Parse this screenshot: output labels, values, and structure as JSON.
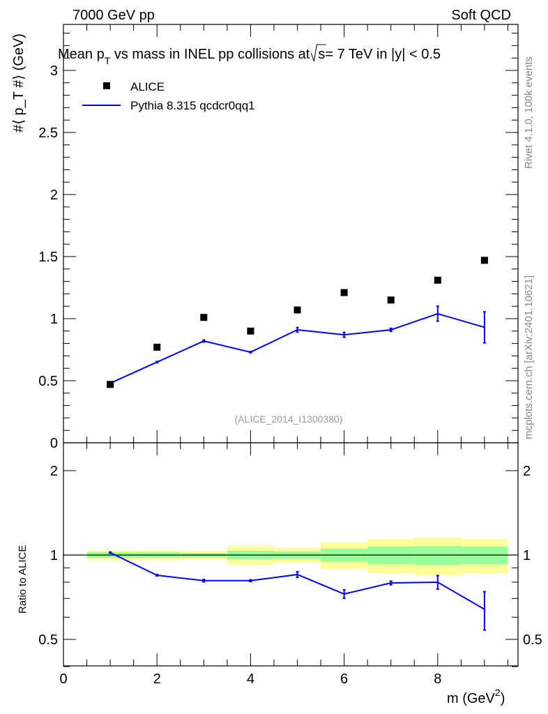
{
  "header": {
    "left": "7000 GeV pp",
    "right": "Soft QCD"
  },
  "side_labels": {
    "rivet": "Rivet 4.1.0,  100k events",
    "mcplots": "mcplots.cern.ch [arXiv:2401.10621]"
  },
  "watermark": "(ALICE_2014_I1300380)",
  "chart_data": [
    {
      "type": "scatter",
      "title": "Mean p_T vs mass in INEL pp collisions at √s = 7 TeV in |y| < 0.5",
      "title_parts": {
        "a": "Mean p",
        "sub": "T",
        "b": " vs mass in INEL pp collisions at",
        "sqrt": "s",
        "c": "=  7 TeV in |y| < 0.5"
      },
      "ylabel": "#⟨ p_T #⟩ (GeV)",
      "ylabel_parts": {
        "a": "#⟨ p",
        "sub": "T",
        "b": " #⟩ (GeV)"
      },
      "xlim": [
        0,
        9.7
      ],
      "ylim": [
        0,
        3.4
      ],
      "yticks": [
        "0",
        "0.5",
        "1",
        "1.5",
        "2",
        "2.5",
        "3"
      ],
      "legend": {
        "placement": "top-left",
        "entries": [
          "ALICE",
          "Pythia 8.315 qcdcr0qq1"
        ]
      },
      "x": [
        1,
        2,
        3,
        4,
        5,
        6,
        7,
        8,
        9
      ],
      "series": [
        {
          "name": "ALICE",
          "style": "markers",
          "color": "#000000",
          "values": [
            0.47,
            0.77,
            1.01,
            0.9,
            1.07,
            1.21,
            1.15,
            1.31,
            1.47
          ]
        },
        {
          "name": "Pythia 8.315 qcdcr0qq1",
          "style": "line",
          "color": "#0000ff",
          "values": [
            0.48,
            0.65,
            0.82,
            0.73,
            0.91,
            0.87,
            0.91,
            1.04,
            0.93
          ],
          "errors": [
            0.005,
            0.005,
            0.008,
            0.005,
            0.018,
            0.02,
            0.012,
            0.06,
            0.125
          ]
        }
      ]
    },
    {
      "type": "line",
      "ylabel": "Ratio to ALICE",
      "xlabel": "m (GeV²)",
      "xlabel_parts": {
        "a": "m (GeV",
        "sup": "2",
        "b": ")"
      },
      "yscale": "log",
      "ylim": [
        0.35,
        2.3
      ],
      "yticks": [
        "0.5",
        "1",
        "2"
      ],
      "xticks": [
        "0",
        "2",
        "4",
        "6",
        "8"
      ],
      "x": [
        1,
        2,
        3,
        4,
        5,
        6,
        7,
        8,
        9
      ],
      "bands": {
        "yellow_halfwidth": [
          0.04,
          0.04,
          0.035,
          0.077,
          0.059,
          0.108,
          0.14,
          0.154,
          0.14
        ],
        "green_halfwidth": [
          0.023,
          0.023,
          0.017,
          0.035,
          0.029,
          0.053,
          0.071,
          0.077,
          0.071
        ],
        "yellow_color": "#ffff99",
        "green_color": "#99ff99"
      },
      "series": [
        {
          "name": "Pythia 8.315 qcdcr0qq1 / ALICE",
          "color": "#0000ff",
          "values": [
            1.02,
            0.847,
            0.81,
            0.81,
            0.852,
            0.726,
            0.795,
            0.8,
            0.64
          ],
          "errors": [
            0.005,
            0.005,
            0.008,
            0.006,
            0.02,
            0.025,
            0.012,
            0.045,
            0.1
          ]
        }
      ]
    }
  ]
}
